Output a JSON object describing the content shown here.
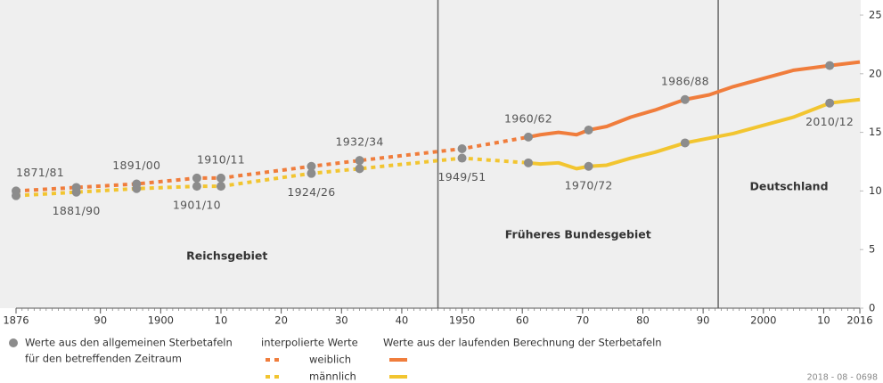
{
  "chart_data": {
    "type": "line",
    "xlim": [
      1876,
      2016
    ],
    "xticks": [
      1876,
      {
        "value": 1890,
        "label": "90"
      },
      1900,
      {
        "value": 1910,
        "label": "10"
      },
      {
        "value": 1920,
        "label": "20"
      },
      {
        "value": 1930,
        "label": "30"
      },
      {
        "value": 1940,
        "label": "40"
      },
      1950,
      {
        "value": 1960,
        "label": "60"
      },
      {
        "value": 1970,
        "label": "70"
      },
      {
        "value": 1980,
        "label": "80"
      },
      {
        "value": 1990,
        "label": "90"
      },
      2000,
      {
        "value": 2010,
        "label": "10"
      },
      2016
    ],
    "ylim": [
      0,
      25
    ],
    "yticks": [
      0,
      5,
      10,
      15,
      20,
      25
    ],
    "x": [
      1876,
      1886,
      1896,
      1906,
      1910,
      1925,
      1933,
      1950,
      1961,
      1963,
      1966,
      1969,
      1971,
      1974,
      1978,
      1982,
      1987,
      1991,
      1995,
      2000,
      2005,
      2011,
      2016
    ],
    "series": [
      {
        "name": "weiblich",
        "color": "#f07d3c",
        "style": "dotted",
        "values": [
          10.0,
          10.3,
          10.6,
          11.1,
          11.1,
          12.1,
          12.6,
          13.6,
          14.6,
          null,
          null,
          null,
          null,
          null,
          null,
          null,
          null,
          null,
          null,
          null,
          null,
          null,
          null
        ]
      },
      {
        "name": "weiblich",
        "color": "#f07d3c",
        "style": "solid",
        "values": [
          null,
          null,
          null,
          null,
          null,
          null,
          null,
          null,
          14.6,
          14.8,
          15.0,
          14.8,
          15.2,
          15.5,
          16.3,
          16.9,
          17.8,
          18.2,
          18.9,
          19.6,
          20.3,
          20.7,
          21.0
        ]
      },
      {
        "name": "männlich",
        "color": "#f2c530",
        "style": "dotted",
        "values": [
          9.6,
          9.9,
          10.2,
          10.4,
          10.4,
          11.5,
          11.9,
          12.8,
          12.4,
          null,
          null,
          null,
          null,
          null,
          null,
          null,
          null,
          null,
          null,
          null,
          null,
          null,
          null
        ]
      },
      {
        "name": "männlich",
        "color": "#f2c530",
        "style": "solid",
        "values": [
          null,
          null,
          null,
          null,
          null,
          null,
          null,
          null,
          12.4,
          12.3,
          12.4,
          11.9,
          12.1,
          12.2,
          12.8,
          13.3,
          14.1,
          14.5,
          14.9,
          15.6,
          16.3,
          17.5,
          17.8
        ]
      }
    ],
    "points": {
      "color": "#8c8c8c",
      "x": [
        1876,
        1886,
        1896,
        1906,
        1910,
        1925,
        1933,
        1950,
        1961,
        1971,
        1987,
        2011
      ],
      "female": [
        10.0,
        10.3,
        10.6,
        11.1,
        11.1,
        12.1,
        12.6,
        13.6,
        14.6,
        15.2,
        17.8,
        20.7
      ],
      "male": [
        9.6,
        9.9,
        10.2,
        10.4,
        10.4,
        11.5,
        11.9,
        12.8,
        12.4,
        12.1,
        14.1,
        17.5
      ],
      "labels": [
        "1871/81",
        "1881/90",
        "1891/00",
        "1901/10",
        "1910/11",
        "1924/26",
        "1932/34",
        "1949/51",
        "1960/62",
        "1970/72",
        "1986/88",
        "2010/12"
      ]
    },
    "dividers": [
      1946,
      1992.5
    ],
    "regions": [
      "Reichsgebiet",
      "Früheres Bundesgebiet",
      "Deutschland"
    ],
    "legend": {
      "points": [
        "Werte aus den allgemeinen Sterbetafeln",
        "für den betreffenden Zeitraum"
      ],
      "interpolated": "interpolierte Werte",
      "computed": "Werte aus der laufenden Berechnung der Sterbetafeln"
    },
    "footer": "2018 - 08 - 0698"
  }
}
